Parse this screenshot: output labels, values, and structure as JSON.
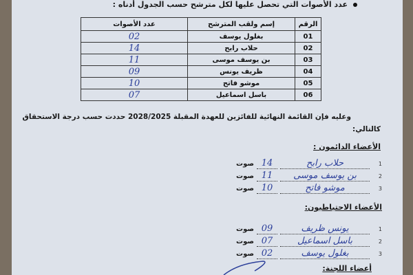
{
  "intro": "عدد الأصوات التي تحصل عليها لكل مترشح حسب الجدول أدناه :",
  "table": {
    "headers": [
      "الرقم",
      "إسم ولقب المترشح",
      "عدد الأصوات"
    ],
    "rows": [
      {
        "no": "01",
        "name": "بغلول يوسف",
        "votes": "02"
      },
      {
        "no": "02",
        "name": "حلاب رابح",
        "votes": "14"
      },
      {
        "no": "03",
        "name": "بن يوسف موسى",
        "votes": "11"
      },
      {
        "no": "04",
        "name": "ظريف يونس",
        "votes": "09"
      },
      {
        "no": "05",
        "name": "موشو فاتح",
        "votes": "10"
      },
      {
        "no": "06",
        "name": "باسل اسماعيل",
        "votes": "07"
      }
    ]
  },
  "paragraph": "وعليه فإن القائمة النهائية للفائزين للعهدة المقبلة 2028/2025 حددت حسب درجة الاستحقاق",
  "paragraph_end": "كالتالي:",
  "permanent": {
    "heading": "الأعضاء الدائمون :",
    "items": [
      {
        "no": "1",
        "name": "حلاب رابح",
        "votes": "14",
        "unit": "صوت"
      },
      {
        "no": "2",
        "name": "بن يوسف موسى",
        "votes": "11",
        "unit": "صوت"
      },
      {
        "no": "3",
        "name": "موشو فاتح",
        "votes": "10",
        "unit": "صوت"
      }
    ]
  },
  "reserve": {
    "heading": "الأعضاء الاحتياطيون:",
    "items": [
      {
        "no": "1",
        "name": "يونس ظريف",
        "votes": "09",
        "unit": "صوت"
      },
      {
        "no": "2",
        "name": "باسل اسماعيل",
        "votes": "07",
        "unit": "صوت"
      },
      {
        "no": "3",
        "name": "بغلول يوسف",
        "votes": "02",
        "unit": "صوت"
      }
    ]
  },
  "committee_heading": "أعضاء اللجنة:",
  "colors": {
    "ink": "#2c3f9a",
    "paper": "#dde2ea"
  }
}
